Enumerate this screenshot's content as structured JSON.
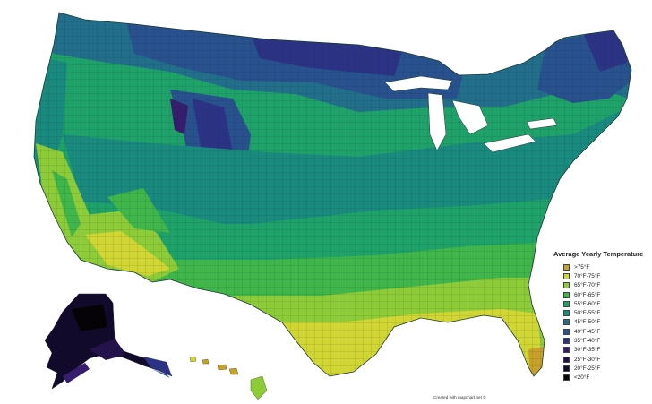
{
  "legend": {
    "title": "Average Yearly Temperature",
    "items": [
      {
        "label": ">75°F",
        "color": "#c7a129"
      },
      {
        "label": "70°F-75°F",
        "color": "#d2d634"
      },
      {
        "label": "65°F-70°F",
        "color": "#8ecb39"
      },
      {
        "label": "60°F-65°F",
        "color": "#3fb54a"
      },
      {
        "label": "55°F-60°F",
        "color": "#1fa26a"
      },
      {
        "label": "50°F-55°F",
        "color": "#1a8a7f"
      },
      {
        "label": "45°F-50°F",
        "color": "#226e8b"
      },
      {
        "label": "40°F-45°F",
        "color": "#28518d"
      },
      {
        "label": "35°F-40°F",
        "color": "#2c3385"
      },
      {
        "label": "30°F-35°F",
        "color": "#361d6e"
      },
      {
        "label": "25°F-30°F",
        "color": "#24124a"
      },
      {
        "label": "20°F-25°F",
        "color": "#120a2a"
      },
      {
        "label": "<20°F",
        "color": "#050305"
      }
    ]
  },
  "credit": "Created with mapchart.net ©"
}
